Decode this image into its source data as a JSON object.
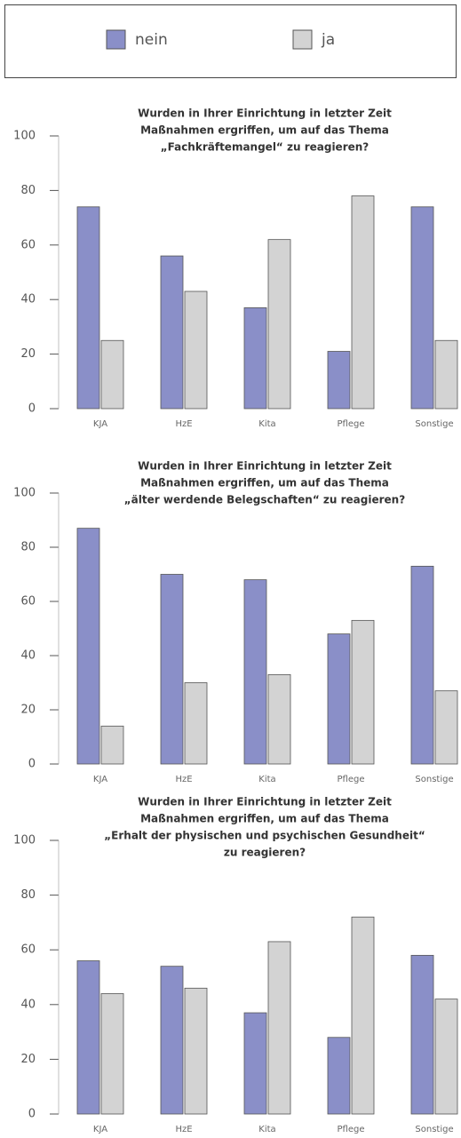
{
  "chart_data": [
    {
      "type": "bar",
      "title": [
        "Wurden in Ihrer Einrichtung in letzter Zeit",
        "Maßnahmen ergriffen, um auf das Thema",
        "„Fachkräftemangel“ zu reagieren?"
      ],
      "categories": [
        "KJA",
        "HzE",
        "Kita",
        "Pflege",
        "Sonstige"
      ],
      "series": [
        {
          "name": "nein",
          "color": "#8a8fc8",
          "values": [
            74,
            56,
            37,
            21,
            74
          ]
        },
        {
          "name": "ja",
          "color": "#d3d3d3",
          "values": [
            25,
            43,
            62,
            78,
            25
          ]
        }
      ],
      "ylim": [
        0,
        100
      ],
      "yticks": [
        0,
        20,
        40,
        60,
        80,
        100
      ]
    },
    {
      "type": "bar",
      "title": [
        "Wurden in Ihrer Einrichtung in letzter Zeit",
        "Maßnahmen ergriffen, um auf das Thema",
        "„älter werdende Belegschaften“ zu reagieren?"
      ],
      "categories": [
        "KJA",
        "HzE",
        "Kita",
        "Pflege",
        "Sonstige"
      ],
      "series": [
        {
          "color": "#8a8fc8",
          "values": [
            87,
            70,
            68,
            48,
            73
          ]
        },
        {
          "color": "#d3d3d3",
          "values": [
            14,
            30,
            33,
            53,
            27
          ]
        }
      ],
      "ylim": [
        0,
        100
      ],
      "yticks": [
        0,
        20,
        40,
        60,
        80,
        100
      ]
    },
    {
      "type": "bar",
      "title": [
        "Wurden in Ihrer Einrichtung in letzter Zeit",
        "Maßnahmen ergriffen, um auf das Thema",
        "„Erhalt der physischen und psychischen Gesundheit“",
        "zu reagieren?"
      ],
      "categories": [
        "KJA",
        "HzE",
        "Kita",
        "Pflege",
        "Sonstige"
      ],
      "series": [
        {
          "color": "#8a8fc8",
          "values": [
            56,
            54,
            37,
            28,
            58
          ]
        },
        {
          "color": "#d3d3d3",
          "values": [
            44,
            46,
            63,
            72,
            42
          ]
        }
      ],
      "ylim": [
        0,
        100
      ],
      "yticks": [
        0,
        20,
        40,
        60,
        80,
        100
      ]
    }
  ]
}
